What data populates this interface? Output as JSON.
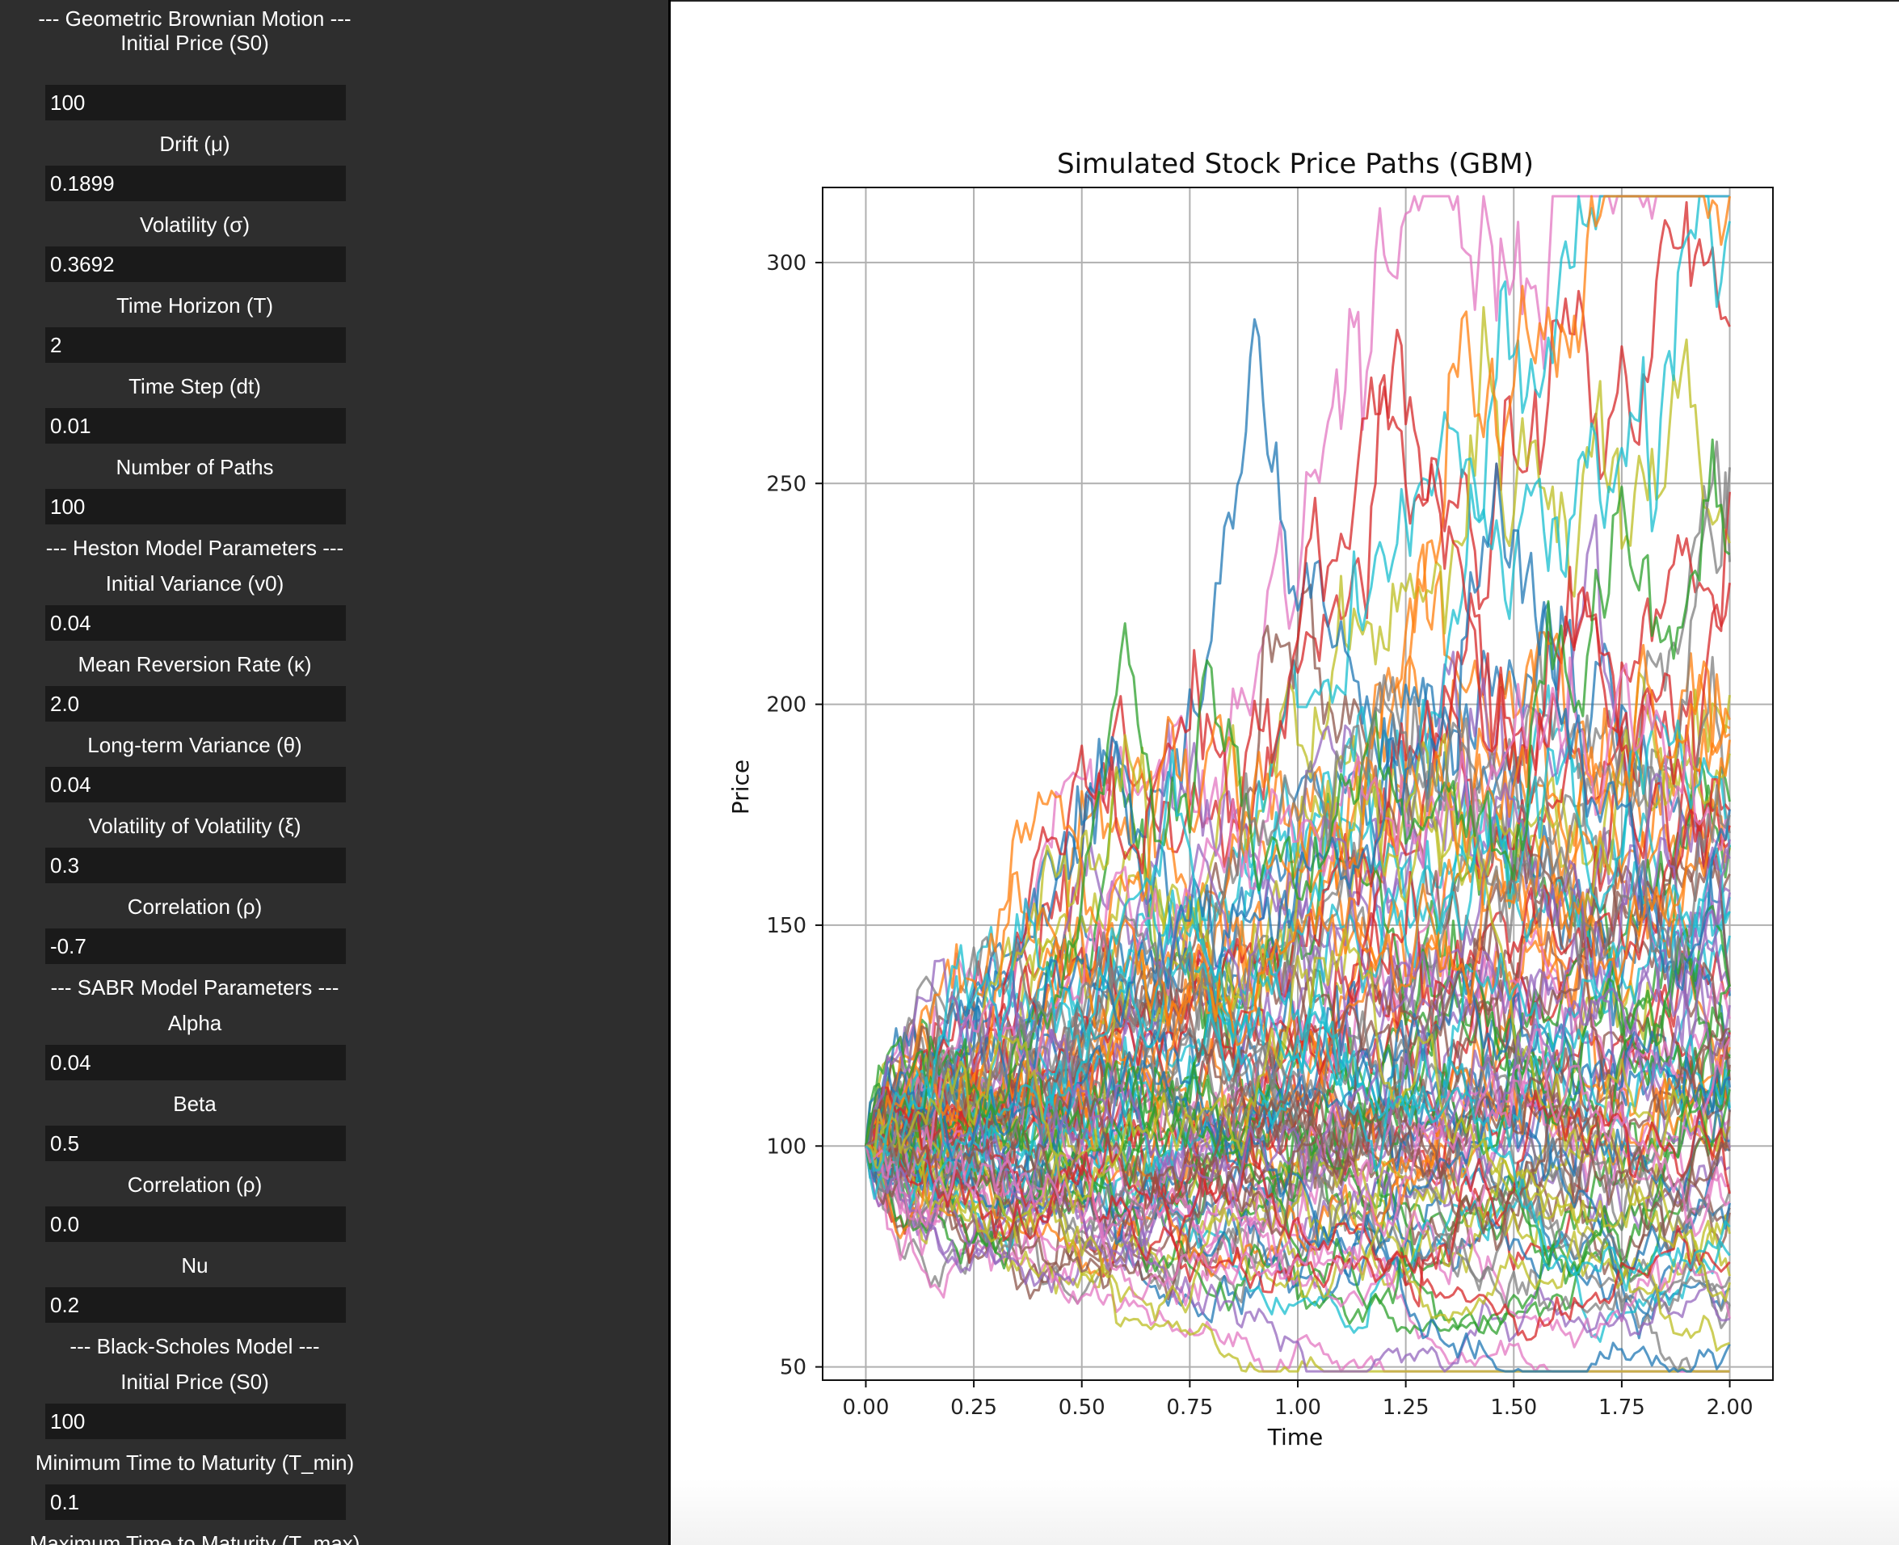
{
  "sidebar": {
    "gbm": {
      "header": "--- Geometric Brownian Motion ---",
      "fields": [
        {
          "label": "Initial Price (S0)",
          "value": "100"
        },
        {
          "label": "Drift (μ)",
          "value": "0.1899"
        },
        {
          "label": "Volatility (σ)",
          "value": "0.3692"
        },
        {
          "label": "Time Horizon (T)",
          "value": "2"
        },
        {
          "label": "Time Step (dt)",
          "value": "0.01"
        },
        {
          "label": "Number of Paths",
          "value": "100"
        }
      ]
    },
    "heston": {
      "header": "--- Heston Model Parameters ---",
      "fields": [
        {
          "label": "Initial Variance (v0)",
          "value": "0.04"
        },
        {
          "label": "Mean Reversion Rate (κ)",
          "value": "2.0"
        },
        {
          "label": "Long-term Variance (θ)",
          "value": "0.04"
        },
        {
          "label": "Volatility of Volatility (ξ)",
          "value": "0.3"
        },
        {
          "label": "Correlation (ρ)",
          "value": "-0.7"
        }
      ]
    },
    "sabr": {
      "header": "--- SABR Model Parameters ---",
      "fields": [
        {
          "label": "Alpha",
          "value": "0.04"
        },
        {
          "label": "Beta",
          "value": "0.5"
        },
        {
          "label": "Correlation (ρ)",
          "value": "0.0"
        },
        {
          "label": "Nu",
          "value": "0.2"
        }
      ]
    },
    "black_scholes": {
      "header": "--- Black-Scholes Model ---",
      "fields": [
        {
          "label": "Initial Price (S0)",
          "value": "100"
        },
        {
          "label": "Minimum Time to Maturity (T_min)",
          "value": "0.1"
        },
        {
          "label": "Maximum Time to Maturity (T_max)",
          "value": ""
        }
      ]
    }
  },
  "chart_data": {
    "type": "line",
    "title": "Simulated Stock Price Paths (GBM)",
    "xlabel": "Time",
    "ylabel": "Price",
    "xlim": [
      -0.1,
      2.1
    ],
    "ylim": [
      47,
      317
    ],
    "xticks": [
      "0.00",
      "0.25",
      "0.50",
      "0.75",
      "1.00",
      "1.25",
      "1.50",
      "1.75",
      "2.00"
    ],
    "yticks": [
      "50",
      "100",
      "150",
      "200",
      "250",
      "300"
    ],
    "grid": true,
    "legend": "none",
    "n_paths": 100,
    "S0": 100,
    "mu": 0.1899,
    "sigma": 0.3692,
    "T": 2,
    "dt": 0.01,
    "palette": [
      "#1f77b4",
      "#ff7f0e",
      "#2ca02c",
      "#d62728",
      "#9467bd",
      "#8c564b",
      "#e377c2",
      "#7f7f7f",
      "#bcbd22",
      "#17becf"
    ]
  }
}
